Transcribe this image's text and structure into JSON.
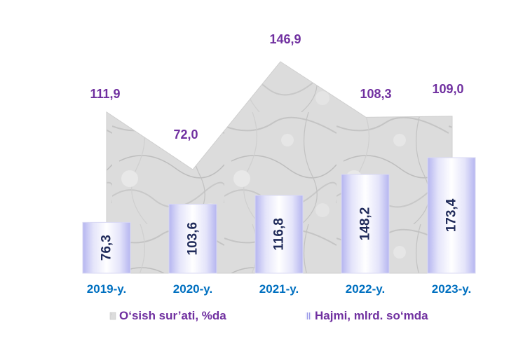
{
  "chart_data": {
    "type": "bar",
    "categories": [
      "2019-y.",
      "2020-y.",
      "2021-y.",
      "2022-y.",
      "2023-y."
    ],
    "series": [
      {
        "name": "O‘sish sur’ati, %da",
        "type": "area",
        "values": [
          111.9,
          72.0,
          146.9,
          108.3,
          109.0
        ],
        "labels": [
          "111,9",
          "72,0",
          "146,9",
          "108,3",
          "109,0"
        ]
      },
      {
        "name": "Hajmi, mlrd. so‘mda",
        "type": "bar",
        "values": [
          76.3,
          103.6,
          116.8,
          148.2,
          173.4
        ],
        "labels": [
          "76,3",
          "103,6",
          "116,8",
          "148,2",
          "173,4"
        ]
      }
    ],
    "legend": "bottom",
    "grid": false
  },
  "colors": {
    "growth_label": "#7030A0",
    "bar_label": "#1F2A5A",
    "category_label": "#0070C0",
    "legend_text": "#7030A0",
    "bar_fill": "#C9C9F5",
    "area_fill": "#D0D0D0"
  }
}
